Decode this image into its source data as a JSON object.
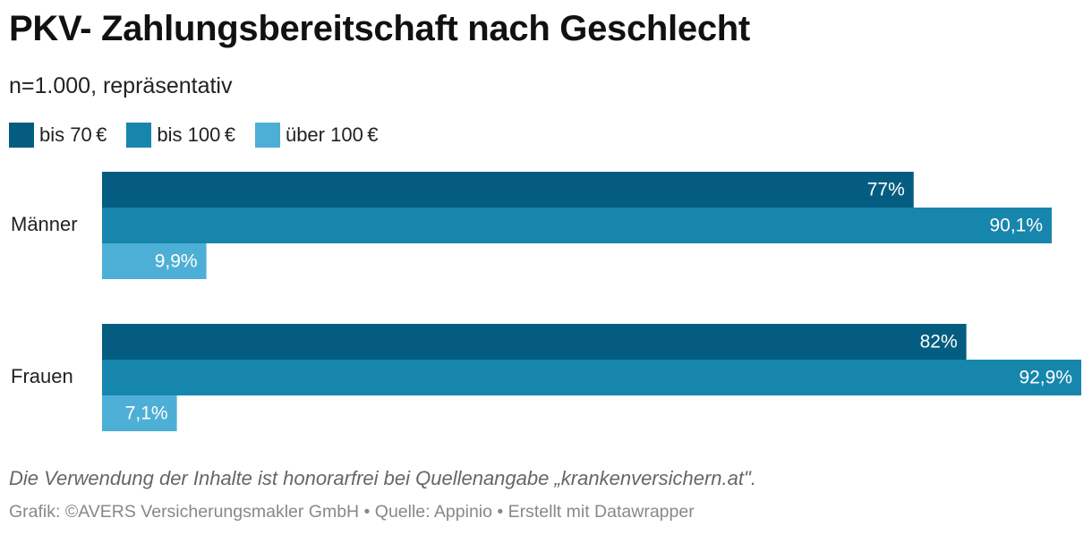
{
  "header": {
    "title": "PKV- Zahlungsbereitschaft nach Geschlecht",
    "subtitle": "n=1.000, repräsentativ"
  },
  "legend": [
    {
      "label": "bis 70 €",
      "color": "#045d80"
    },
    {
      "label": "bis 100 €",
      "color": "#1786ac"
    },
    {
      "label": "über 100 €",
      "color": "#4eafd6"
    }
  ],
  "chart_data": {
    "type": "bar",
    "orientation": "horizontal",
    "categories": [
      "Männer",
      "Frauen"
    ],
    "series": [
      {
        "name": "bis 70 €",
        "values": [
          77,
          82
        ],
        "labels": [
          "77%",
          "82%"
        ],
        "color": "#045d80"
      },
      {
        "name": "bis 100 €",
        "values": [
          90.1,
          92.9
        ],
        "labels": [
          "90,1%",
          "92,9%"
        ],
        "color": "#1786ac"
      },
      {
        "name": "über 100 €",
        "values": [
          9.9,
          7.1
        ],
        "labels": [
          "9,9%",
          "7,1%"
        ],
        "color": "#4eafd6"
      }
    ],
    "xlim": [
      0,
      92.9
    ],
    "grid": false,
    "legend_position": "top-left"
  },
  "footer": {
    "note": "Die Verwendung der Inhalte ist honorarfrei bei Quellenangabe „krankenversichern.at\".",
    "credit": "Grafik: ©AVERS Versicherungsmakler GmbH • Quelle: Appinio • Erstellt mit Datawrapper"
  }
}
